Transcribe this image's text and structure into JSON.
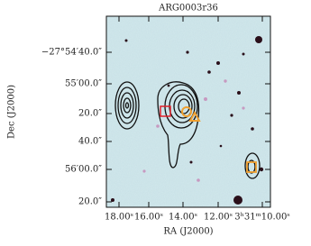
{
  "title": "ARG0003r36",
  "x_axis": {
    "label": "RA (J2000)",
    "ticks": [
      "18.00ˢ",
      "16.00ˢ",
      "14.00ˢ",
      "12.00ˢ",
      "3ʰ31ᵐ10.00ˢ"
    ]
  },
  "y_axis": {
    "label": "Dec (J2000)",
    "ticks": [
      "−27°54′40.0″",
      "55′00.0″",
      "20.0″",
      "40.0″",
      "56′00.0″",
      "20.0″"
    ]
  }
}
